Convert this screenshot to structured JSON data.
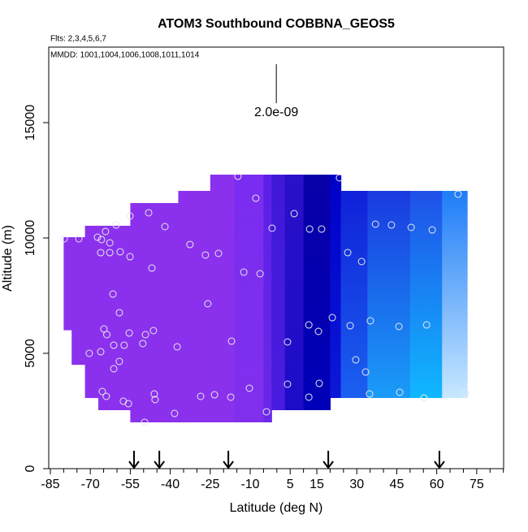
{
  "chart_data": {
    "type": "curtain",
    "title": "ATOM3 Southbound COBBNA_GEOS5",
    "subtitle": "Flts: 2,3,4,5,6,7",
    "annotation": "MMDD: 1001,1004,1006,1008,1011,1014",
    "xlabel": "Latitude (deg N)",
    "ylabel": "Altitude (m)",
    "xlim": [
      -85.6,
      85.1
    ],
    "ylim": [
      0,
      18275
    ],
    "xticks": [
      -85,
      -70,
      -55,
      -40,
      -25,
      -10,
      5,
      15,
      30,
      45,
      60,
      75
    ],
    "xminorticks": [
      -80,
      -75,
      -65,
      -60,
      -50,
      -45,
      -35,
      -30,
      -20,
      -15,
      -5,
      0,
      10,
      20,
      25,
      35,
      40,
      50,
      55,
      65,
      70,
      80,
      85
    ],
    "yticks": [
      0,
      5000,
      10000,
      15000
    ],
    "curtain": {
      "lat_edges": [
        -80,
        -77,
        -72,
        -67,
        -55,
        -48,
        -37,
        -25,
        -16,
        -5,
        -2,
        3,
        10,
        20,
        24,
        34,
        50,
        62,
        71.4
      ],
      "top": [
        10035,
        10035,
        10530,
        10530,
        11514,
        11514,
        12042,
        12746,
        12746,
        12746,
        12746,
        12746,
        12746,
        12746,
        12042,
        12042,
        12042,
        12042
      ],
      "bottom": [
        6000,
        4500,
        3063,
        2535,
        2007,
        2007,
        2007,
        2007,
        2007,
        2007,
        2535,
        2535,
        2535,
        3063,
        3063,
        3063,
        3063,
        3063
      ],
      "color_top": [
        "#8b31ee",
        "#8b31ee",
        "#8b31ee",
        "#8b31ee",
        "#8b31ee",
        "#8b31ee",
        "#8b31ee",
        "#8a31ee",
        "#7a2cf0",
        "#5a20e8",
        "#4018d8",
        "#2a10c8",
        "#0800a8",
        "#0000c8",
        "#1020d8",
        "#1a3ae0",
        "#2050e8",
        "#1e7cf8"
      ],
      "color_bottom": [
        "#8b31ee",
        "#8b31ee",
        "#8b31ee",
        "#8b31ee",
        "#8b31ee",
        "#8b31ee",
        "#8b31ee",
        "#8a31ee",
        "#8030ec",
        "#6a28e8",
        "#4a1ce0",
        "#1c0cc8",
        "#0000b8",
        "#0c18d8",
        "#1a60f0",
        "#1a9cf8",
        "#10b8ff",
        "#c8e8ff"
      ]
    },
    "points": {
      "color": "#e8e8e8",
      "x": [
        -79.8,
        -74.3,
        -67.3,
        -65.8,
        -64.3,
        -60.3,
        -55.1,
        -48.1,
        -42.0,
        -62.7,
        -66.1,
        -62.7,
        -58.8,
        -55.1,
        -46.9,
        -32.6,
        -26.8,
        -21.9,
        -14.6,
        -7.9,
        -1.8,
        6.5,
        12.3,
        16.8,
        23.5,
        -12.4,
        -6.3,
        26.6,
        31.8,
        37.0,
        43.0,
        50.4,
        58.3,
        68.0,
        -61.5,
        -59.1,
        -25.9,
        -64.9,
        -63.8,
        -55.4,
        -49.3,
        -46.3,
        -61.2,
        -66.1,
        -70.4,
        -57.3,
        -50.3,
        -37.4,
        -59.1,
        -61.2,
        -17.0,
        4.0,
        20.8,
        12.0,
        15.6,
        27.5,
        35.1,
        45.8,
        56.2,
        29.6,
        33.3,
        4.0,
        15.9,
        12.0,
        34.8,
        46.1,
        55.2,
        70.8,
        -65.5,
        -64.0,
        -57.6,
        -55.7,
        -46.0,
        -45.7,
        -38.4,
        -28.6,
        -23.4,
        -17.3,
        -10.3,
        -3.9,
        -49.6
      ],
      "y": [
        9965,
        9965,
        10035,
        9930,
        10282,
        10563,
        10951,
        11092,
        10493,
        9789,
        9366,
        9366,
        9401,
        9190,
        8697,
        9718,
        9261,
        9331,
        12676,
        11725,
        10423,
        11056,
        10387,
        10387,
        12606,
        8521,
        8451,
        9366,
        8979,
        10599,
        10563,
        10458,
        10352,
        11901,
        7570,
        6761,
        7148,
        6056,
        5810,
        5880,
        5810,
        5986,
        5352,
        5070,
        5000,
        5352,
        5423,
        5282,
        4648,
        4331,
        5528,
        5493,
        6549,
        6232,
        5951,
        6197,
        6408,
        6162,
        6232,
        4718,
        4190,
        3662,
        3697,
        3099,
        3239,
        3310,
        3063,
        3275,
        3345,
        3134,
        2923,
        2817,
        3239,
        2993,
        2394,
        3134,
        3204,
        3099,
        3486,
        2465,
        2007
      ]
    },
    "arrows": [
      -53.6,
      -44.1,
      -18.2,
      19.3,
      61.0
    ],
    "scale_bar": {
      "label": "2.0e-09",
      "x": -0.2,
      "y": [
        15845,
        17535
      ]
    }
  }
}
